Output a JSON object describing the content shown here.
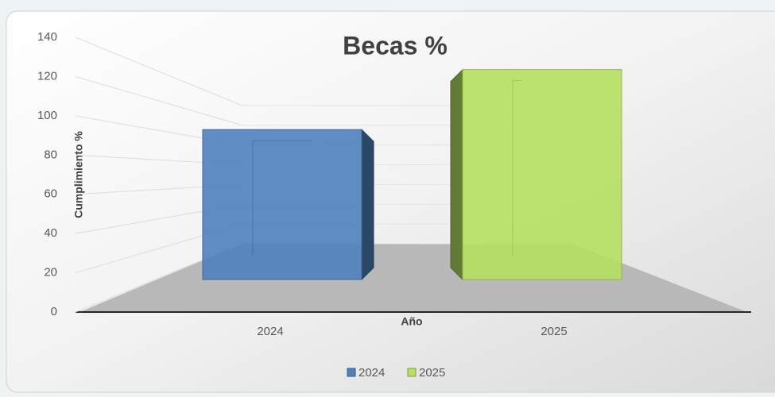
{
  "chart_data": {
    "type": "bar3d",
    "title": "Becas %",
    "y_label": "Cumplimiento %",
    "x_label": "Año",
    "categories": [
      "2024",
      "2025"
    ],
    "series": [
      {
        "name": "2024",
        "color": "#4f81bd",
        "values": [
          80,
          null
        ]
      },
      {
        "name": "2025",
        "color": "#b5e061",
        "values": [
          null,
          112
        ]
      }
    ],
    "ylim": [
      0,
      140
    ],
    "yticks": [
      0,
      20,
      40,
      60,
      80,
      100,
      120,
      140
    ],
    "grid": true,
    "legend": "bottom"
  }
}
